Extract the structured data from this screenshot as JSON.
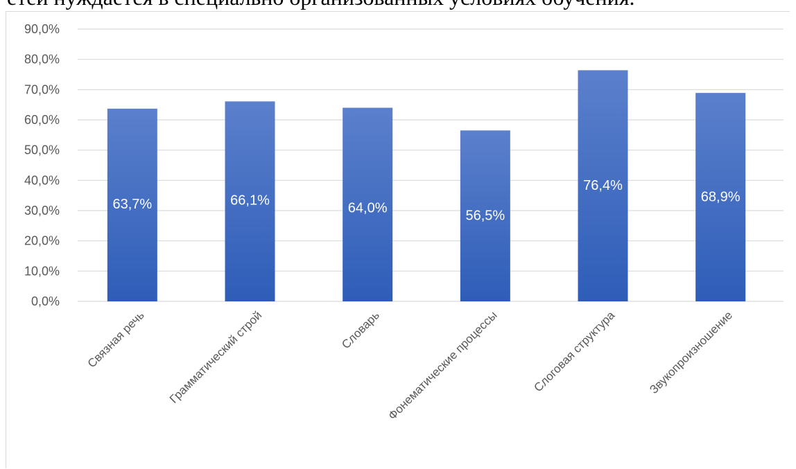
{
  "document": {
    "visible_text": "етей нуждается в специально организованных условиях обучения."
  },
  "chart_data": {
    "type": "bar",
    "categories": [
      "Связная речь",
      "Грамматический строй",
      "Словарь",
      "Фонематические процессы",
      "Слоговая структура",
      "Звукопроизношение"
    ],
    "values": [
      63.7,
      66.1,
      64.0,
      56.5,
      76.4,
      68.9
    ],
    "data_labels": [
      "63,7%",
      "66,1%",
      "64,0%",
      "56,5%",
      "76,4%",
      "68,9%"
    ],
    "yticks": [
      "0,0%",
      "10,0%",
      "20,0%",
      "30,0%",
      "40,0%",
      "50,0%",
      "60,0%",
      "70,0%",
      "80,0%",
      "90,0%"
    ],
    "ylim": [
      0,
      90
    ],
    "grid": true,
    "legend": "none",
    "title": "",
    "xlabel": "",
    "ylabel": "",
    "colors": {
      "bar_top": "#5b80cc",
      "bar_bottom": "#2e5db8",
      "grid": "#d9d9d9",
      "tick_text": "#595959",
      "label_text": "#ffffff"
    }
  }
}
